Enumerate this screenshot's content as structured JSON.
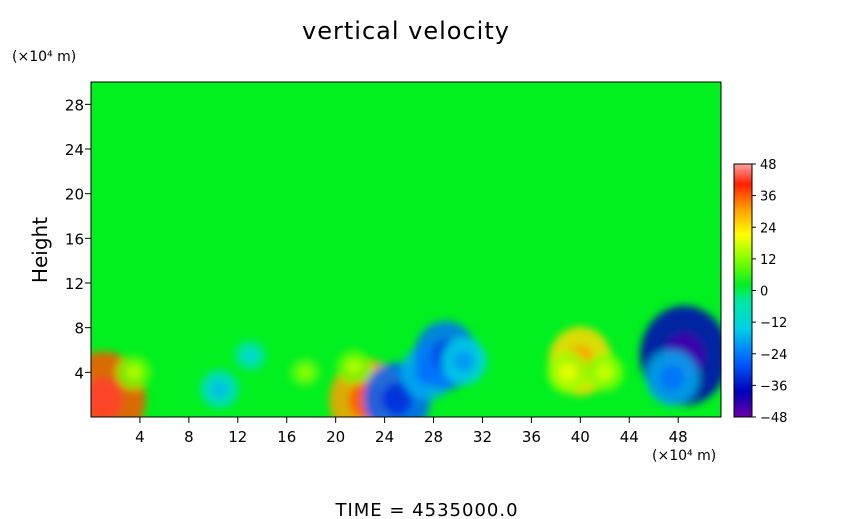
{
  "chart_data": {
    "type": "heatmap",
    "title": "vertical velocity",
    "xlabel": "",
    "ylabel": "Height",
    "x_unit": "(×10⁴ m)",
    "y_unit": "(×10⁴ m)",
    "xlim": [
      0,
      51.5
    ],
    "ylim": [
      0,
      30
    ],
    "x_ticks": [
      4,
      8,
      12,
      16,
      20,
      24,
      28,
      32,
      36,
      40,
      44,
      48
    ],
    "x_tick_labels": [
      "4",
      "8",
      "12",
      "16",
      "20",
      "24",
      "28",
      "32",
      "36",
      "40",
      "44",
      "48"
    ],
    "y_ticks": [
      4,
      8,
      12,
      16,
      20,
      24,
      28
    ],
    "y_tick_labels": [
      "4",
      "8",
      "12",
      "16",
      "20",
      "24",
      "28"
    ],
    "colorbar": {
      "range": [
        -48,
        48
      ],
      "ticks": [
        48,
        36,
        24,
        12,
        0,
        -12,
        -24,
        -36,
        -48
      ],
      "tick_labels": [
        "48",
        "36",
        "24",
        "12",
        "0",
        "−12",
        "−24",
        "−36",
        "−48"
      ]
    },
    "background_value": 0,
    "features": [
      {
        "x": 1.0,
        "y": 1.6,
        "value": 36
      },
      {
        "x": 3.5,
        "y": 4.0,
        "value": 8
      },
      {
        "x": 10.5,
        "y": 2.5,
        "value": -10
      },
      {
        "x": 13.0,
        "y": 5.5,
        "value": -6
      },
      {
        "x": 17.5,
        "y": 4.0,
        "value": 6
      },
      {
        "x": 22.5,
        "y": 1.5,
        "value": 30
      },
      {
        "x": 21.5,
        "y": 4.5,
        "value": 8
      },
      {
        "x": 25.0,
        "y": 1.6,
        "value": -26
      },
      {
        "x": 27.5,
        "y": 4.0,
        "value": -18
      },
      {
        "x": 29.0,
        "y": 5.5,
        "value": -24
      },
      {
        "x": 30.5,
        "y": 5.0,
        "value": -14
      },
      {
        "x": 40.0,
        "y": 5.0,
        "value": 24
      },
      {
        "x": 39.0,
        "y": 4.0,
        "value": 12
      },
      {
        "x": 42.0,
        "y": 4.0,
        "value": 10
      },
      {
        "x": 48.5,
        "y": 5.5,
        "value": -38
      },
      {
        "x": 47.5,
        "y": 3.5,
        "value": -18
      }
    ],
    "grid": false
  },
  "footer": {
    "time_label": "TIME = 4535000.0"
  }
}
